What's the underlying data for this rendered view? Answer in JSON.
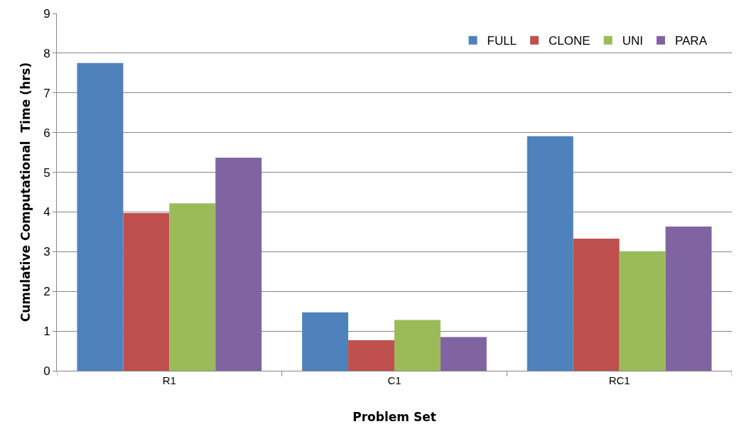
{
  "chart_data": {
    "type": "bar",
    "xlabel": "Problem Set",
    "ylabel": "Cumulative Computational  Time (hrs)",
    "categories": [
      "R1",
      "C1",
      "RC1"
    ],
    "series": [
      {
        "name": "FULL",
        "color": "#4f81bd",
        "values": [
          7.75,
          1.47,
          5.91
        ]
      },
      {
        "name": "CLONE",
        "color": "#c0504d",
        "values": [
          3.97,
          0.77,
          3.33
        ]
      },
      {
        "name": "UNI",
        "color": "#9bbb59",
        "values": [
          4.22,
          1.28,
          3.01
        ]
      },
      {
        "name": "PARA",
        "color": "#8064a2",
        "values": [
          5.37,
          0.85,
          3.63
        ]
      }
    ],
    "ylim": [
      0,
      9
    ],
    "yticks": [
      0,
      1,
      2,
      3,
      4,
      5,
      6,
      7,
      8,
      9
    ],
    "grid": "y",
    "legend": "top right"
  }
}
